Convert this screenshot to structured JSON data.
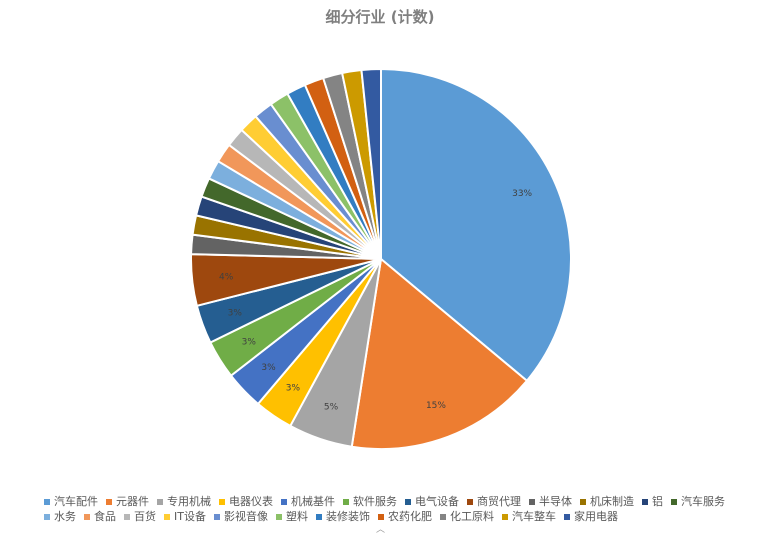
{
  "chart_data": {
    "type": "pie",
    "title": "细分行业 (计数)",
    "categories": [
      "汽车配件",
      "元器件",
      "专用机械",
      "电器仪表",
      "机械基件",
      "软件服务",
      "电气设备",
      "商贸代理",
      "半导体",
      "机床制造",
      "铝",
      "汽车服务",
      "水务",
      "食品",
      "百货",
      "IT设备",
      "影视音像",
      "塑料",
      "装修装饰",
      "农药化肥",
      "化工原料",
      "汽车整车",
      "家用电器"
    ],
    "values": [
      33,
      15,
      5,
      3,
      3,
      3,
      3,
      4,
      1.5,
      1.5,
      1.5,
      1.5,
      1.5,
      1.5,
      1.5,
      1.5,
      1.5,
      1.5,
      1.5,
      1.5,
      1.5,
      1.5,
      1.5
    ],
    "data_labels": [
      "33%",
      "15%",
      "5%",
      "3%",
      "3%",
      "3%",
      "3%",
      "4%",
      "",
      "",
      "",
      "",
      "",
      "",
      "",
      "",
      "",
      "",
      "",
      "",
      "",
      "",
      ""
    ],
    "colors": [
      "#5b9bd5",
      "#ed7d31",
      "#a5a5a5",
      "#ffc000",
      "#4472c4",
      "#70ad47",
      "#255e91",
      "#9e480e",
      "#636363",
      "#997300",
      "#264478",
      "#43682b",
      "#7cafdd",
      "#f1975a",
      "#b7b7b7",
      "#ffcd33",
      "#698ed0",
      "#8cc168",
      "#327dc2",
      "#d26012",
      "#848484",
      "#cc9a00",
      "#335aa1"
    ],
    "legend_position": "bottom",
    "legend_rows": [
      12,
      11
    ]
  }
}
